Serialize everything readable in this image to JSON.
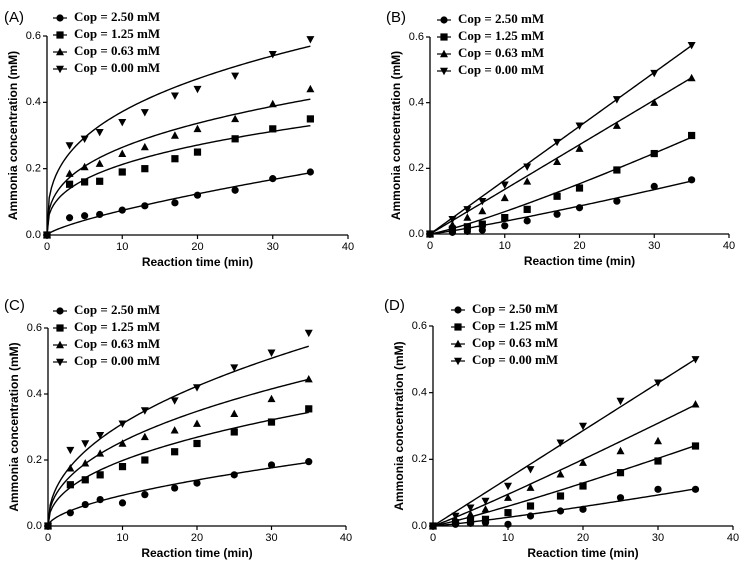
{
  "chart_data": [
    {
      "panel": "(A)",
      "type": "scatter",
      "xlabel": "Reaction time (min)",
      "ylabel": "Ammonia concentration (mM)",
      "xlim": [
        0,
        40
      ],
      "ylim": [
        0,
        0.6
      ],
      "xticks": [
        "0",
        "10",
        "20",
        "30",
        "40"
      ],
      "yticks": [
        "0.0",
        "0.2",
        "0.4",
        "0.6"
      ],
      "legend_position": "top-left",
      "fit": "power",
      "series": [
        {
          "name": "Cop = 2.50 mM",
          "marker": "circle",
          "x": [
            0,
            3,
            5,
            7,
            10,
            13,
            17,
            20,
            25,
            30,
            35
          ],
          "y": [
            0,
            0.052,
            0.058,
            0.062,
            0.075,
            0.088,
            0.097,
            0.12,
            0.135,
            0.17,
            0.19
          ],
          "fit": [
            0.0135,
            0.74
          ]
        },
        {
          "name": "Cop = 1.25 mM",
          "marker": "square",
          "x": [
            0,
            3,
            5,
            7,
            10,
            13,
            17,
            20,
            25,
            30,
            35
          ],
          "y": [
            0,
            0.153,
            0.16,
            0.162,
            0.19,
            0.2,
            0.23,
            0.25,
            0.29,
            0.32,
            0.35
          ],
          "fit": [
            0.095,
            0.35
          ]
        },
        {
          "name": "Cop = 0.63 mM",
          "marker": "triangle-up",
          "x": [
            0,
            3,
            5,
            7,
            10,
            13,
            17,
            20,
            25,
            30,
            35
          ],
          "y": [
            0,
            0.185,
            0.205,
            0.215,
            0.245,
            0.265,
            0.3,
            0.32,
            0.35,
            0.395,
            0.44
          ],
          "fit": [
            0.118,
            0.35
          ]
        },
        {
          "name": "Cop = 0.00 mM",
          "marker": "triangle-down",
          "x": [
            0,
            3,
            5,
            7,
            10,
            13,
            17,
            20,
            25,
            30,
            35
          ],
          "y": [
            0,
            0.27,
            0.29,
            0.31,
            0.34,
            0.37,
            0.42,
            0.44,
            0.48,
            0.545,
            0.59
          ],
          "fit": [
            0.17,
            0.34
          ]
        }
      ]
    },
    {
      "panel": "(B)",
      "type": "scatter",
      "xlabel": "Reaction time (min)",
      "ylabel": "Ammonia concentration (mM)",
      "xlim": [
        0,
        40
      ],
      "ylim": [
        0,
        0.6
      ],
      "xticks": [
        "0",
        "10",
        "20",
        "30",
        "40"
      ],
      "yticks": [
        "0.0",
        "0.2",
        "0.4",
        "0.6"
      ],
      "legend_position": "top-left",
      "fit": "power",
      "series": [
        {
          "name": "Cop = 2.50 mM",
          "marker": "circle",
          "x": [
            0,
            3,
            5,
            7,
            10,
            13,
            17,
            20,
            25,
            30,
            35
          ],
          "y": [
            0,
            0.005,
            0.008,
            0.012,
            0.025,
            0.04,
            0.06,
            0.08,
            0.1,
            0.145,
            0.165
          ],
          "fit": [
            0.0028,
            1.14
          ]
        },
        {
          "name": "Cop = 1.25 mM",
          "marker": "square",
          "x": [
            0,
            3,
            5,
            7,
            10,
            13,
            17,
            20,
            25,
            30,
            35
          ],
          "y": [
            0,
            0.015,
            0.022,
            0.03,
            0.05,
            0.075,
            0.115,
            0.14,
            0.195,
            0.245,
            0.3
          ],
          "fit": [
            0.0046,
            1.17
          ]
        },
        {
          "name": "Cop = 0.63 mM",
          "marker": "triangle-up",
          "x": [
            0,
            3,
            5,
            7,
            10,
            13,
            17,
            20,
            25,
            30,
            35
          ],
          "y": [
            0,
            0.028,
            0.05,
            0.07,
            0.11,
            0.16,
            0.22,
            0.26,
            0.33,
            0.4,
            0.475
          ],
          "fit": [
            0.0136,
            1.0
          ]
        },
        {
          "name": "Cop = 0.00 mM",
          "marker": "triangle-down",
          "x": [
            0,
            3,
            5,
            7,
            10,
            13,
            17,
            20,
            25,
            30,
            35
          ],
          "y": [
            0,
            0.045,
            0.075,
            0.1,
            0.15,
            0.205,
            0.28,
            0.33,
            0.41,
            0.49,
            0.575
          ],
          "fit": [
            0.0164,
            1.0
          ]
        }
      ]
    },
    {
      "panel": "(C)",
      "type": "scatter",
      "xlabel": "Reaction time (min)",
      "ylabel": "Ammonia concentration (mM)",
      "xlim": [
        0,
        40
      ],
      "ylim": [
        0,
        0.6
      ],
      "xticks": [
        "0",
        "10",
        "20",
        "30",
        "40"
      ],
      "yticks": [
        "0.0",
        "0.2",
        "0.4",
        "0.6"
      ],
      "legend_position": "top-left",
      "fit": "power",
      "series": [
        {
          "name": "Cop = 2.50 mM",
          "marker": "circle",
          "x": [
            0,
            3,
            5,
            7,
            10,
            13,
            17,
            20,
            25,
            30,
            35
          ],
          "y": [
            0,
            0.04,
            0.065,
            0.08,
            0.07,
            0.095,
            0.115,
            0.13,
            0.155,
            0.185,
            0.195
          ],
          "fit": [
            0.0245,
            0.58
          ]
        },
        {
          "name": "Cop = 1.25 mM",
          "marker": "square",
          "x": [
            0,
            3,
            5,
            7,
            10,
            13,
            17,
            20,
            25,
            30,
            35
          ],
          "y": [
            0,
            0.125,
            0.14,
            0.155,
            0.18,
            0.2,
            0.225,
            0.25,
            0.285,
            0.315,
            0.355
          ],
          "fit": [
            0.072,
            0.44
          ]
        },
        {
          "name": "Cop = 0.63 mM",
          "marker": "triangle-up",
          "x": [
            0,
            3,
            5,
            7,
            10,
            13,
            17,
            20,
            25,
            30,
            35
          ],
          "y": [
            0,
            0.175,
            0.19,
            0.22,
            0.25,
            0.27,
            0.29,
            0.31,
            0.34,
            0.385,
            0.445
          ],
          "fit": [
            0.093,
            0.44
          ]
        },
        {
          "name": "Cop = 0.00 mM",
          "marker": "triangle-down",
          "x": [
            0,
            3,
            5,
            7,
            10,
            13,
            17,
            20,
            25,
            30,
            35
          ],
          "y": [
            0,
            0.23,
            0.25,
            0.275,
            0.31,
            0.35,
            0.38,
            0.42,
            0.48,
            0.525,
            0.585
          ],
          "fit": [
            0.11,
            0.45
          ]
        }
      ]
    },
    {
      "panel": "(D)",
      "type": "scatter",
      "xlabel": "Reaction time (min)",
      "ylabel": "Ammonia concentration (mM)",
      "xlim": [
        0,
        40
      ],
      "ylim": [
        0,
        0.6
      ],
      "xticks": [
        "0",
        "10",
        "20",
        "30",
        "40"
      ],
      "yticks": [
        "0.0",
        "0.2",
        "0.4",
        "0.6"
      ],
      "legend_position": "top",
      "fit": "power",
      "series": [
        {
          "name": "Cop = 2.50 mM",
          "marker": "circle",
          "x": [
            0,
            3,
            5,
            7,
            10,
            13,
            17,
            20,
            25,
            30,
            35
          ],
          "y": [
            0,
            0.005,
            0.008,
            0.01,
            0.005,
            0.03,
            0.045,
            0.05,
            0.085,
            0.11,
            0.11
          ],
          "fit": [
            0.0018,
            1.16
          ]
        },
        {
          "name": "Cop = 1.25 mM",
          "marker": "square",
          "x": [
            0,
            3,
            5,
            7,
            10,
            13,
            17,
            20,
            25,
            30,
            35
          ],
          "y": [
            0,
            0.01,
            0.015,
            0.02,
            0.04,
            0.06,
            0.09,
            0.12,
            0.16,
            0.195,
            0.24
          ],
          "fit": [
            0.0045,
            1.12
          ]
        },
        {
          "name": "Cop = 0.63 mM",
          "marker": "triangle-up",
          "x": [
            0,
            3,
            5,
            7,
            10,
            13,
            17,
            20,
            25,
            30,
            35
          ],
          "y": [
            0,
            0.02,
            0.035,
            0.05,
            0.085,
            0.115,
            0.155,
            0.19,
            0.225,
            0.255,
            0.365
          ],
          "fit": [
            0.0081,
            1.07
          ]
        },
        {
          "name": "Cop = 0.00 mM",
          "marker": "triangle-down",
          "x": [
            0,
            3,
            5,
            7,
            10,
            13,
            17,
            20,
            25,
            30,
            35
          ],
          "y": [
            0,
            0.03,
            0.055,
            0.075,
            0.12,
            0.17,
            0.25,
            0.3,
            0.375,
            0.43,
            0.5
          ],
          "fit": [
            0.0143,
            1.0
          ]
        }
      ]
    }
  ]
}
